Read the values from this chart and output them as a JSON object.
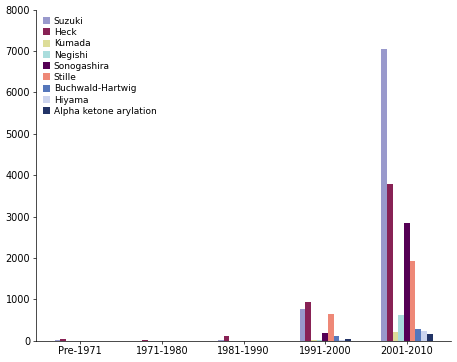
{
  "categories": [
    "Pre-1971",
    "1971-1980",
    "1981-1990",
    "1991-2000",
    "2001-2010"
  ],
  "series": [
    {
      "name": "Suzuki",
      "color": "#9999cc",
      "values": [
        20,
        5,
        25,
        780,
        7050
      ]
    },
    {
      "name": "Heck",
      "color": "#882255",
      "values": [
        50,
        10,
        110,
        950,
        3800
      ]
    },
    {
      "name": "Kumada",
      "color": "#dddd99",
      "values": [
        2,
        2,
        2,
        20,
        210
      ]
    },
    {
      "name": "Negishi",
      "color": "#aadddd",
      "values": [
        2,
        2,
        2,
        20,
        620
      ]
    },
    {
      "name": "Sonogashira",
      "color": "#550055",
      "values": [
        2,
        2,
        2,
        180,
        2850
      ]
    },
    {
      "name": "Stille",
      "color": "#ee8877",
      "values": [
        2,
        2,
        2,
        640,
        1920
      ]
    },
    {
      "name": "Buchwald-Hartwig",
      "color": "#5577bb",
      "values": [
        2,
        2,
        2,
        110,
        290
      ]
    },
    {
      "name": "Hiyama",
      "color": "#ccd4ee",
      "values": [
        2,
        2,
        2,
        20,
        230
      ]
    },
    {
      "name": "Alpha ketone arylation",
      "color": "#223366",
      "values": [
        2,
        5,
        8,
        45,
        170
      ]
    }
  ],
  "ylim": [
    0,
    8000
  ],
  "yticks": [
    0,
    1000,
    2000,
    3000,
    4000,
    5000,
    6000,
    7000,
    8000
  ],
  "bar_width": 0.07,
  "figsize": [
    4.57,
    3.62
  ],
  "dpi": 100,
  "bg_color": "#ffffff",
  "legend_fontsize": 6.5,
  "tick_fontsize": 7
}
